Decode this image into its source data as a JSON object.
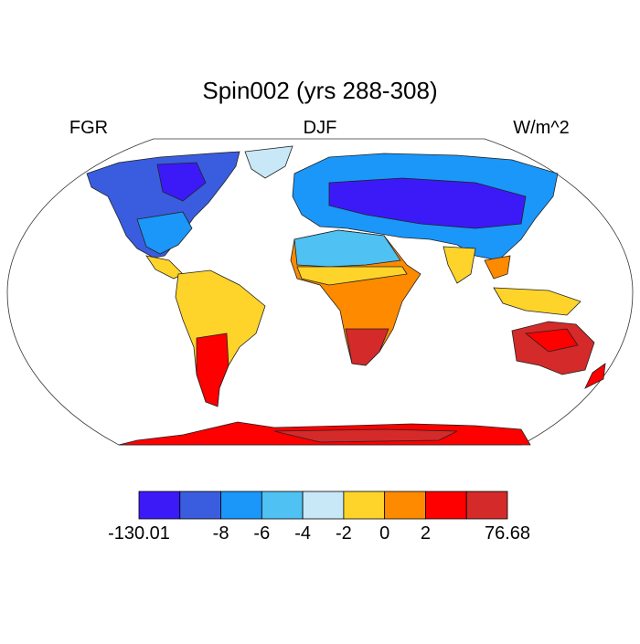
{
  "header": {
    "title": "Spin002 (yrs 288-308)",
    "left": "FGR",
    "center": "DJF",
    "right": "W/m^2"
  },
  "colorbar": {
    "colors": [
      "#3c1af7",
      "#3a5ddf",
      "#1a97f9",
      "#4fc1f3",
      "#c8e7f7",
      "#fed42a",
      "#fe8a00",
      "#fe0000",
      "#d42a2a"
    ],
    "ticks": [
      -130.01,
      null,
      -8,
      -6,
      -4,
      -2,
      0,
      2,
      null,
      76.68
    ]
  }
}
